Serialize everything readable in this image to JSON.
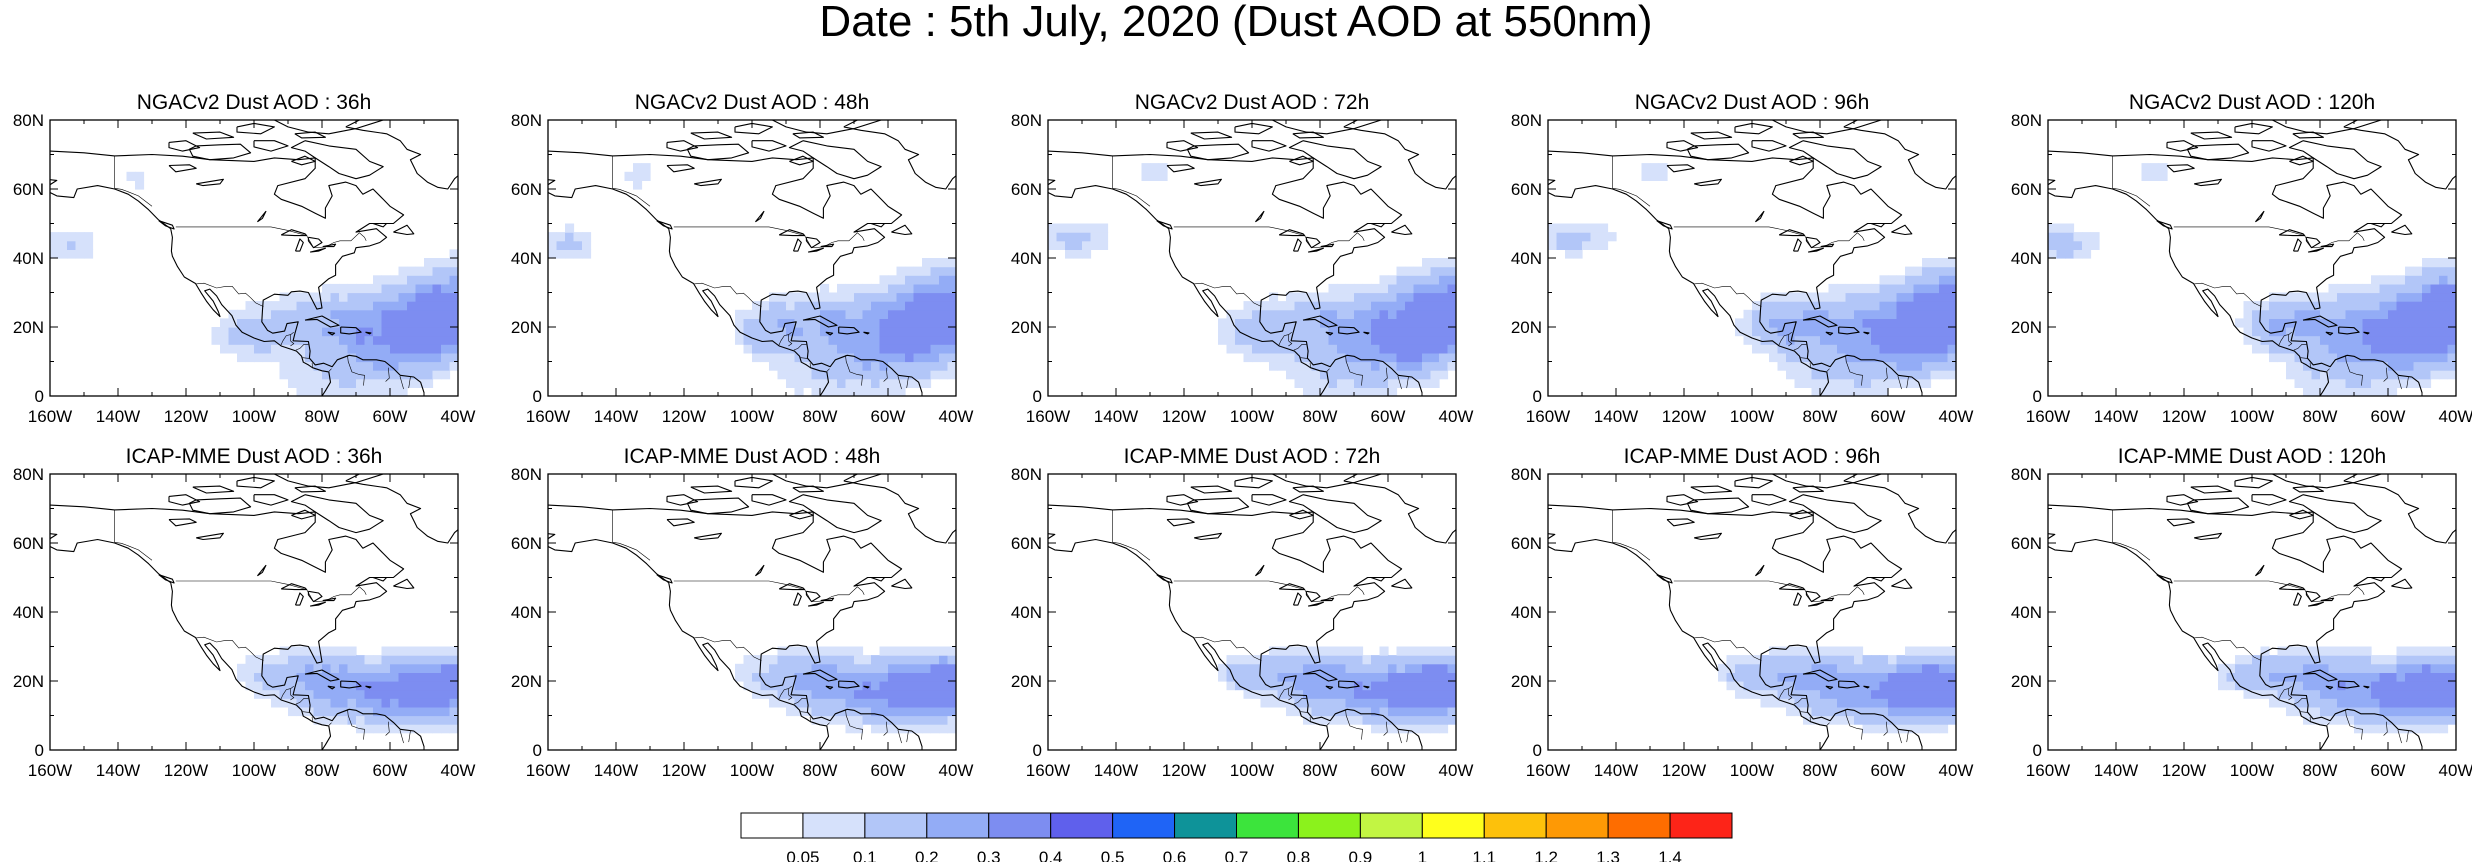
{
  "title": "Date : 5th July, 2020 (Dust AOD at 550nm)",
  "map": {
    "longitude_ticks": [
      "160W",
      "140W",
      "120W",
      "100W",
      "80W",
      "60W",
      "40W"
    ],
    "latitude_ticks": [
      "0",
      "20N",
      "40N",
      "60N",
      "80N"
    ],
    "lon_range": [
      -160,
      -40
    ],
    "lat_range": [
      0,
      80
    ]
  },
  "panels": [
    {
      "title": "NGACv2 Dust AOD : 36h",
      "model": "NGACv2",
      "lead": "36h"
    },
    {
      "title": "NGACv2 Dust AOD : 48h",
      "model": "NGACv2",
      "lead": "48h"
    },
    {
      "title": "NGACv2 Dust AOD : 72h",
      "model": "NGACv2",
      "lead": "72h"
    },
    {
      "title": "NGACv2 Dust AOD : 96h",
      "model": "NGACv2",
      "lead": "96h"
    },
    {
      "title": "NGACv2 Dust AOD : 120h",
      "model": "NGACv2",
      "lead": "120h"
    },
    {
      "title": "ICAP-MME Dust AOD : 36h",
      "model": "ICAP-MME",
      "lead": "36h"
    },
    {
      "title": "ICAP-MME Dust AOD : 48h",
      "model": "ICAP-MME",
      "lead": "48h"
    },
    {
      "title": "ICAP-MME Dust AOD : 72h",
      "model": "ICAP-MME",
      "lead": "72h"
    },
    {
      "title": "ICAP-MME Dust AOD : 96h",
      "model": "ICAP-MME",
      "lead": "96h"
    },
    {
      "title": "ICAP-MME Dust AOD : 120h",
      "model": "ICAP-MME",
      "lead": "120h"
    }
  ],
  "colorbar": {
    "labels": [
      "0.05",
      "0.1",
      "0.2",
      "0.3",
      "0.4",
      "0.5",
      "0.6",
      "0.7",
      "0.8",
      "0.9",
      "1",
      "1.1",
      "1.2",
      "1.3",
      "1.4"
    ],
    "colors": [
      "#ffffff",
      "#d6e1fb",
      "#b2c6f8",
      "#93acf6",
      "#7d8df1",
      "#5f60ec",
      "#1f64f6",
      "#0e9399",
      "#3ce43c",
      "#8bf21c",
      "#c2f543",
      "#ffff1c",
      "#fdc10b",
      "#fe9905",
      "#fe6d00",
      "#fd2418"
    ]
  },
  "dust_levels": [
    {
      "level": "0.05-0.1",
      "color": "#d6e1fb"
    },
    {
      "level": "0.1-0.2",
      "color": "#b2c6f8"
    },
    {
      "level": "0.2-0.3",
      "color": "#93acf6"
    },
    {
      "level": "0.3-0.4",
      "color": "#7d8df1"
    }
  ]
}
